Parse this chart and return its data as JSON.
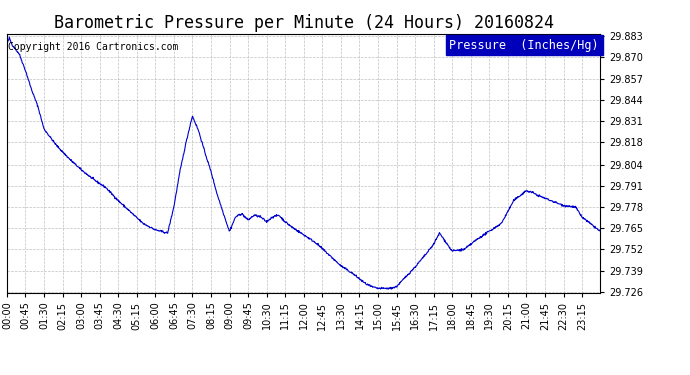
{
  "title": "Barometric Pressure per Minute (24 Hours) 20160824",
  "copyright": "Copyright 2016 Cartronics.com",
  "legend_label": "Pressure  (Inches/Hg)",
  "line_color": "#0000cc",
  "background_color": "#ffffff",
  "grid_color": "#b0b0b0",
  "ylim": [
    29.7255,
    29.8845
  ],
  "yticks": [
    29.726,
    29.739,
    29.752,
    29.765,
    29.778,
    29.791,
    29.804,
    29.818,
    29.831,
    29.844,
    29.857,
    29.87,
    29.883
  ],
  "xtick_labels": [
    "00:00",
    "00:45",
    "01:30",
    "02:15",
    "03:00",
    "03:45",
    "04:30",
    "05:15",
    "06:00",
    "06:45",
    "07:30",
    "08:15",
    "09:00",
    "09:45",
    "10:30",
    "11:15",
    "12:00",
    "12:45",
    "13:30",
    "14:15",
    "15:00",
    "15:45",
    "16:30",
    "17:15",
    "18:00",
    "18:45",
    "19:30",
    "20:15",
    "21:00",
    "21:45",
    "22:30",
    "23:15"
  ],
  "title_fontsize": 12,
  "copyright_fontsize": 7,
  "legend_fontsize": 8.5,
  "tick_fontsize": 7,
  "control_times": [
    0,
    0.1,
    0.2,
    0.35,
    0.5,
    0.6,
    0.75,
    1.0,
    1.25,
    1.5,
    2.0,
    2.5,
    3.0,
    3.5,
    4.0,
    4.5,
    5.0,
    5.5,
    6.0,
    6.25,
    6.5,
    6.75,
    7.0,
    7.25,
    7.5,
    7.75,
    8.0,
    8.25,
    8.5,
    9.0,
    9.25,
    9.5,
    9.75,
    10.0,
    10.25,
    10.5,
    10.75,
    11.0,
    11.25,
    11.5,
    12.0,
    12.5,
    13.0,
    13.5,
    14.0,
    14.5,
    14.75,
    15.0,
    15.5,
    15.75,
    16.0,
    16.5,
    17.0,
    17.25,
    17.5,
    18.0,
    18.5,
    19.0,
    19.5,
    20.0,
    20.5,
    21.0,
    21.25,
    21.5,
    22.0,
    22.5,
    23.0,
    23.25,
    24.0
  ],
  "control_vals": [
    29.878,
    29.882,
    29.878,
    29.875,
    29.872,
    29.868,
    29.862,
    29.85,
    29.84,
    29.826,
    29.816,
    29.808,
    29.801,
    29.795,
    29.79,
    29.782,
    29.775,
    29.768,
    29.764,
    29.763,
    29.762,
    29.778,
    29.8,
    29.818,
    29.834,
    29.825,
    29.812,
    29.8,
    29.786,
    29.763,
    29.772,
    29.774,
    29.77,
    29.773,
    29.772,
    29.769,
    29.772,
    29.773,
    29.769,
    29.766,
    29.761,
    29.756,
    29.749,
    29.742,
    29.737,
    29.731,
    29.729,
    29.728,
    29.728,
    29.729,
    29.733,
    29.741,
    29.75,
    29.755,
    29.762,
    29.751,
    29.752,
    29.758,
    29.763,
    29.768,
    29.782,
    29.788,
    29.787,
    29.785,
    29.782,
    29.779,
    29.778,
    29.772,
    29.763
  ]
}
